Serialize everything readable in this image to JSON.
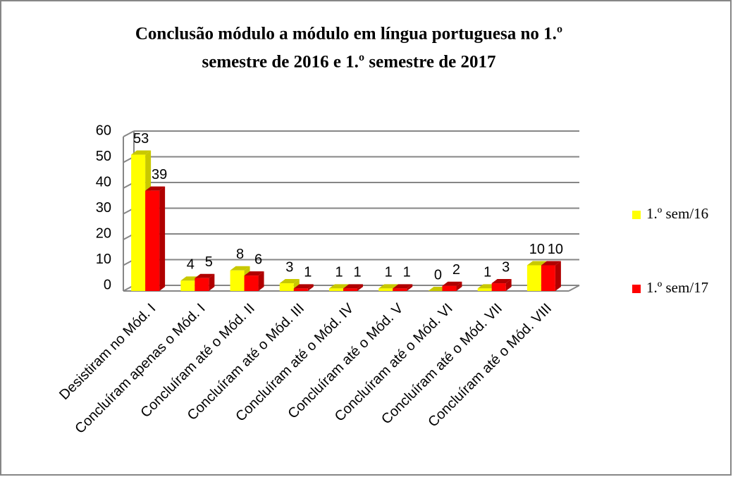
{
  "chart_data": {
    "type": "bar3d",
    "title": [
      "Conclusão módulo a módulo em língua portuguesa no 1.º",
      "semestre de 2016 e 1.º semestre de 2017"
    ],
    "categories": [
      "Desistiram no Mód. I",
      "Concluíram apenas o Mód. I",
      "Concluíram até o Mód. II",
      "Concluíram até o Mód. III",
      "Concluíram até o Mód. IV",
      "Concluíram até o Mód. V",
      "Concluíram até o Mód. VI",
      "Concluíram até o Mód. VII",
      "Concluíram até o Mód. VIII"
    ],
    "series": [
      {
        "name": "1.º sem/16",
        "color": "#ffff00",
        "side": "#c8c800",
        "values": [
          53,
          4,
          8,
          3,
          1,
          1,
          0,
          1,
          10
        ]
      },
      {
        "name": "1.º sem/17",
        "color": "#ff0000",
        "side": "#b00000",
        "values": [
          39,
          5,
          6,
          1,
          1,
          1,
          2,
          3,
          10
        ]
      }
    ],
    "ylim": [
      0,
      60
    ],
    "yticks": [
      0,
      10,
      20,
      30,
      40,
      50,
      60
    ],
    "grid": true
  }
}
